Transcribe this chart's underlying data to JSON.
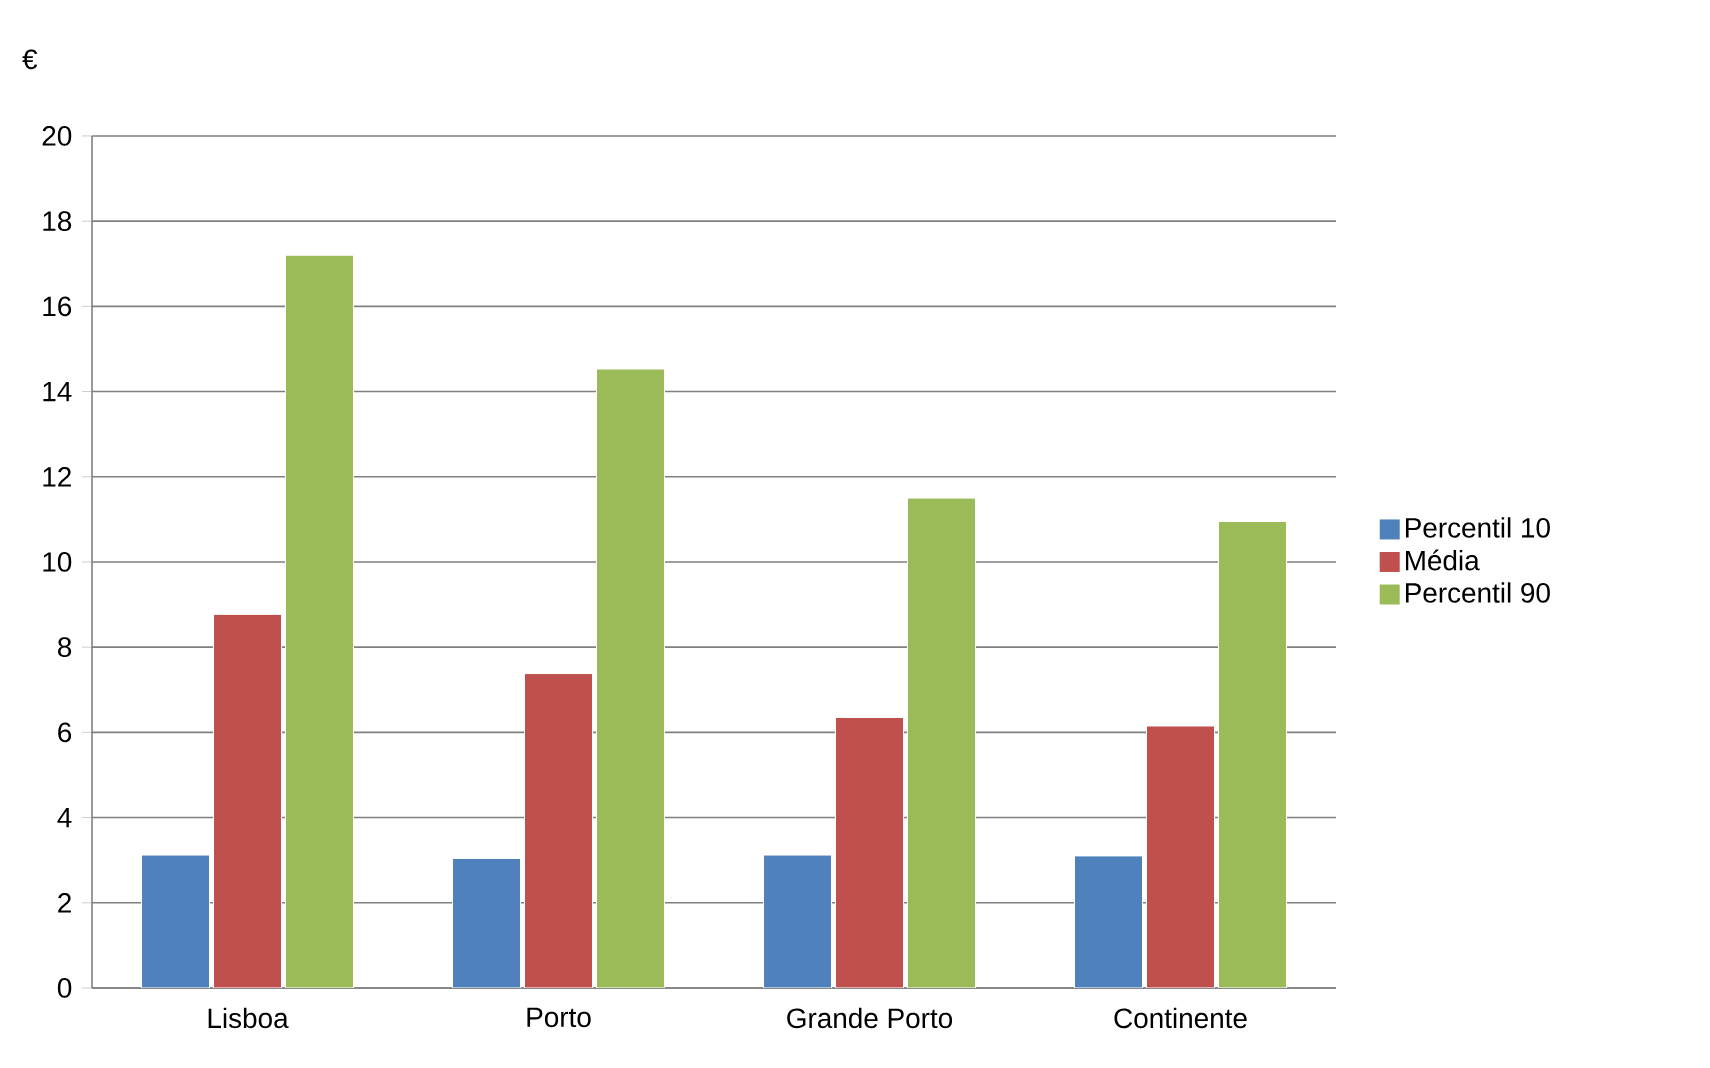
{
  "chart_data": {
    "type": "bar",
    "ylabel": "€",
    "categories": [
      "Lisboa",
      "Porto",
      "Grande Porto",
      "Continente"
    ],
    "series": [
      {
        "name": "Percentil 10",
        "color": "#4f81bd",
        "values": [
          3.12,
          3.04,
          3.12,
          3.1
        ]
      },
      {
        "name": "Média",
        "color": "#c0504d",
        "values": [
          8.77,
          7.38,
          6.35,
          6.15
        ]
      },
      {
        "name": "Percentil 90",
        "color": "#9bbb59",
        "values": [
          17.2,
          14.53,
          11.5,
          10.95
        ]
      }
    ],
    "ylim": [
      0,
      20
    ],
    "yticks": [
      0,
      2,
      4,
      6,
      8,
      10,
      12,
      14,
      16,
      18,
      20
    ],
    "grid": "y",
    "legend": "right"
  }
}
